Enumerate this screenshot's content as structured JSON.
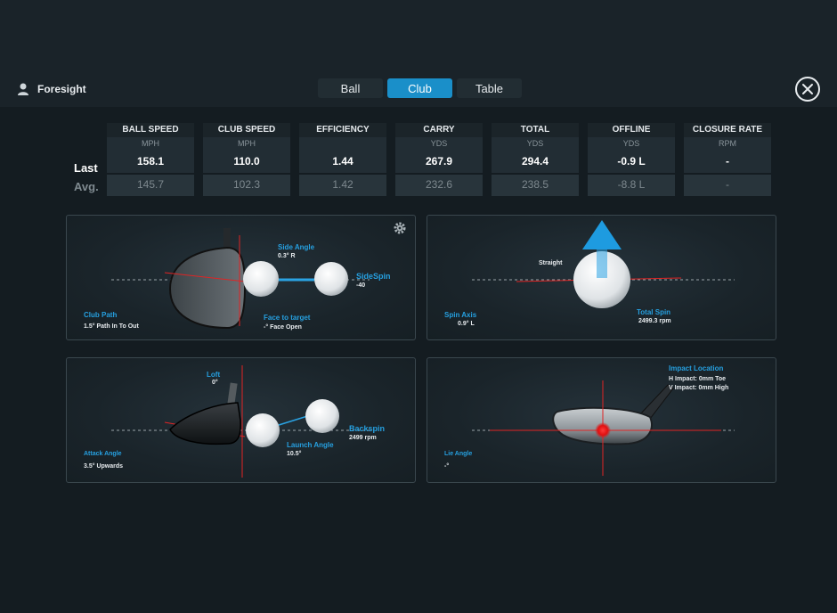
{
  "header": {
    "user_name": "Foresight",
    "tabs": [
      {
        "label": "Ball",
        "active": false
      },
      {
        "label": "Club",
        "active": true
      },
      {
        "label": "Table",
        "active": false
      }
    ]
  },
  "rows": {
    "last": "Last",
    "avg": "Avg."
  },
  "metrics": [
    {
      "title": "BALL SPEED",
      "unit": "MPH",
      "last": "158.1",
      "avg": "145.7"
    },
    {
      "title": "CLUB SPEED",
      "unit": "MPH",
      "last": "110.0",
      "avg": "102.3"
    },
    {
      "title": "EFFICIENCY",
      "unit": "",
      "last": "1.44",
      "avg": "1.42"
    },
    {
      "title": "CARRY",
      "unit": "YDS",
      "last": "267.9",
      "avg": "232.6"
    },
    {
      "title": "TOTAL",
      "unit": "YDS",
      "last": "294.4",
      "avg": "238.5"
    },
    {
      "title": "OFFLINE",
      "unit": "YDS",
      "last": "-0.9 L",
      "avg": "-8.8 L"
    },
    {
      "title": "CLOSURE RATE",
      "unit": "RPM",
      "last": "-",
      "avg": "-"
    }
  ],
  "panels": {
    "top_down": {
      "side_angle_label": "Side Angle",
      "side_angle_value": "0.3°  R",
      "sidespin_label": "SideSpin",
      "sidespin_value": "-40",
      "club_path_label": "Club Path",
      "club_path_value": "1.5° Path In To Out",
      "face_label": "Face to target",
      "face_value": "-° Face Open"
    },
    "spin_axis": {
      "straight_label": "Straight",
      "spin_axis_label": "Spin Axis",
      "spin_axis_value": "0.9°  L",
      "total_spin_label": "Total Spin",
      "total_spin_value": "2499.3 rpm"
    },
    "side_view": {
      "loft_label": "Loft",
      "loft_value": "0°",
      "backspin_label": "Backspin",
      "backspin_value": "2499 rpm",
      "launch_label": "Launch Angle",
      "launch_value": "10.5°",
      "attack_label": "Attack Angle",
      "attack_value": "3.5° Upwards"
    },
    "impact": {
      "impact_label": "Impact Location",
      "h_impact": "H Impact: 0mm Toe",
      "v_impact": "V Impact: 0mm High",
      "lie_label": "Lie Angle",
      "lie_value": "-°"
    }
  },
  "colors": {
    "accent": "#1a8fc9",
    "label_blue": "#26a0e0",
    "red_line": "#e02424",
    "background": "#141c21"
  }
}
